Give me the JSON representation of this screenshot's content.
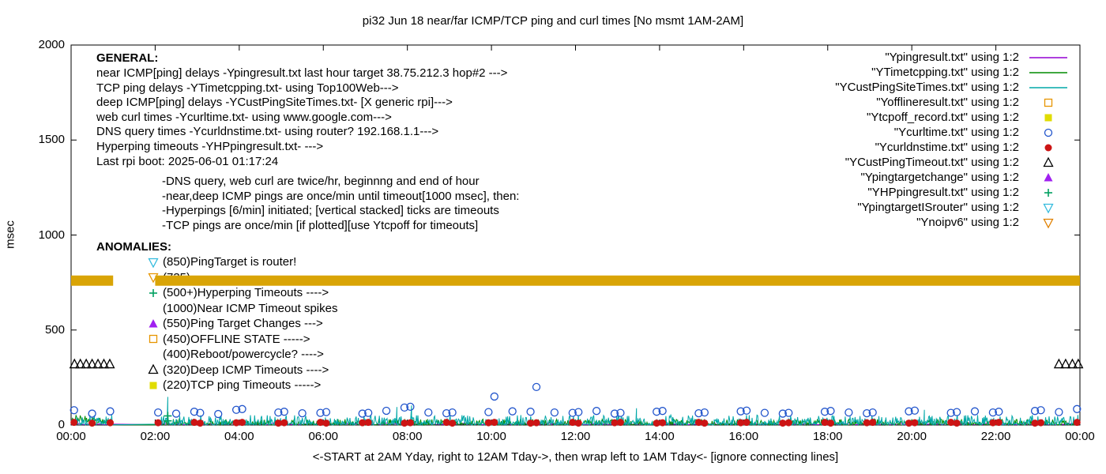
{
  "title": "pi32 Jun 18 near/far ICMP/TCP ping and curl times [No msmt 1AM-2AM]",
  "ylabel": "msec",
  "xlabel_note": "<-START at 2AM Yday, right to 12AM Tday->, then wrap left to 1AM Tday<- [ignore connecting lines]",
  "general": {
    "heading": "GENERAL:",
    "items": [
      {
        "text": "near ICMP[ping] delays -Ypingresult.txt last hour target 38.75.212.3 hop#2 --->",
        "indent": false
      },
      {
        "text": "TCP ping delays -YTimetcpping.txt- using Top100Web--->",
        "indent": false
      },
      {
        "text": "deep ICMP[ping] delays -YCustPingSiteTimes.txt- [X generic rpi]--->",
        "indent": false
      },
      {
        "text": "web curl times -Ycurltime.txt- using www.google.com--->",
        "indent": false
      },
      {
        "text": "DNS query times -Ycurldnstime.txt- using router? 192.168.1.1--->",
        "indent": false
      },
      {
        "text": "Hyperping timeouts -YHPpingresult.txt- --->",
        "indent": false
      },
      {
        "text": "Last rpi boot: 2025-06-01 01:17:24",
        "indent": false
      },
      {
        "text": "-DNS query, web curl are twice/hr, beginnng and end of hour",
        "indent": true
      },
      {
        "text": "-near,deep ICMP pings are once/min until timeout[1000 msec], then:",
        "indent": true
      },
      {
        "text": "-Hyperpings [6/min] initiated; [vertical stacked] ticks are timeouts",
        "indent": true
      },
      {
        "text": "-TCP pings are once/min [if plotted][use Ytcpoff for timeouts]",
        "indent": true
      }
    ]
  },
  "anomalies": {
    "heading": "ANOMALIES:",
    "items": [
      {
        "marker": "triangle-down-open",
        "color": "#33BBDD",
        "text": "(850)PingTarget is router!"
      },
      {
        "marker": "triangle-down-open",
        "color": "#E69500",
        "text": "(735)"
      },
      {
        "marker": "plus",
        "color": "#00A060",
        "text": "(500+)Hyperping Timeouts ---->"
      },
      {
        "marker": null,
        "color": null,
        "text": "(1000)Near ICMP Timeout spikes"
      },
      {
        "marker": "triangle-filled",
        "color": "#A020F0",
        "text": "(550)Ping Target Changes --->"
      },
      {
        "marker": "square-open",
        "color": "#E69500",
        "text": "(450)OFFLINE STATE ----->"
      },
      {
        "marker": null,
        "color": null,
        "text": "(400)Reboot/powercycle? ---->"
      },
      {
        "marker": "triangle-open",
        "color": "#000000",
        "text": "(320)Deep ICMP Timeouts ---->"
      },
      {
        "marker": "square-filled",
        "color": "#E0DC00",
        "text": "(220)TCP ping Timeouts ----->"
      }
    ]
  },
  "legend": [
    {
      "label": "\"Ypingresult.txt\" using 1:2",
      "marker": "line",
      "color": "#9400D3"
    },
    {
      "label": "\"YTimetcpping.txt\" using 1:2",
      "marker": "line",
      "color": "#008C00"
    },
    {
      "label": "\"YCustPingSiteTimes.txt\" using 1:2",
      "marker": "line",
      "color": "#00A8A8"
    },
    {
      "label": "\"Yofflineresult.txt\" using 1:2",
      "marker": "square-open",
      "color": "#E69500"
    },
    {
      "label": "\"Ytcpoff_record.txt\" using 1:2",
      "marker": "square-filled",
      "color": "#E0DC00"
    },
    {
      "label": "\"Ycurltime.txt\" using 1:2",
      "marker": "circle-open",
      "color": "#2255CC"
    },
    {
      "label": "\"Ycurldnstime.txt\" using 1:2",
      "marker": "circle-filled",
      "color": "#CC1414"
    },
    {
      "label": "\"YCustPingTimeout.txt\" using 1:2",
      "marker": "triangle-open",
      "color": "#000000"
    },
    {
      "label": "\"Ypingtargetchange\" using 1:2",
      "marker": "triangle-filled",
      "color": "#A020F0"
    },
    {
      "label": "\"YHPpingresult.txt\" using 1:2",
      "marker": "plus",
      "color": "#00A060"
    },
    {
      "label": "\"YpingtargetISrouter\" using 1:2",
      "marker": "triangle-down-open",
      "color": "#33BBDD"
    },
    {
      "label": "\"Ynoipv6\" using 1:2",
      "marker": "triangle-down-open",
      "color": "#E08000"
    }
  ],
  "chart_data": {
    "type": "line",
    "title": "pi32 Jun 18 near/far ICMP/TCP ping and curl times [No msmt 1AM-2AM]",
    "xlabel": "<-START at 2AM Yday, right to 12AM Tday->, then wrap left to 1AM Tday<- [ignore connecting lines]",
    "ylabel": "msec",
    "xlim": [
      0,
      24
    ],
    "ylim": [
      0,
      2000
    ],
    "grid": false,
    "legend_position": "top-right",
    "no_measurement_gap_hours": [
      1,
      2
    ],
    "xticks": {
      "hours": [
        0,
        2,
        4,
        6,
        8,
        10,
        12,
        14,
        16,
        18,
        20,
        22,
        24
      ],
      "labels": [
        "00:00",
        "02:00",
        "04:00",
        "06:00",
        "08:00",
        "10:00",
        "12:00",
        "14:00",
        "16:00",
        "18:00",
        "20:00",
        "22:00",
        "00:00"
      ]
    },
    "yticks": [
      0,
      500,
      1000,
      1500,
      2000
    ],
    "series": [
      {
        "name": "Ynoipv6",
        "style": "band",
        "color": "#D9A406",
        "y": 760,
        "band_halfwidth_msec": 27,
        "segments": [
          [
            0,
            1
          ],
          [
            2,
            24
          ]
        ]
      },
      {
        "name": "Ypingresult",
        "style": "noise-line",
        "color": "#9400D3",
        "seed": 11,
        "step_hours": 0.05,
        "y_base": 2,
        "y_amp": 10,
        "segments": [
          [
            0,
            1
          ],
          [
            2,
            24
          ]
        ]
      },
      {
        "name": "YTimetcpping",
        "style": "noise-line",
        "color": "#008C00",
        "seed": 23,
        "step_hours": 0.016667,
        "y_base": 1,
        "y_amp": 30,
        "ramp_first_hour": 26,
        "segments": [
          [
            0,
            1
          ],
          [
            2,
            24
          ]
        ]
      },
      {
        "name": "YCustPingSiteTimes",
        "style": "noise-line",
        "color": "#00A8A8",
        "seed": 5,
        "step_hours": 0.016667,
        "y_base": 1,
        "y_amp": 52,
        "segments": [
          [
            0,
            1
          ],
          [
            2,
            24
          ]
        ],
        "spikes": [
          [
            2.3,
            148
          ],
          [
            7.75,
            95
          ],
          [
            8.1,
            103
          ],
          [
            13.45,
            88
          ],
          [
            20.3,
            80
          ]
        ]
      },
      {
        "name": "Ycurltime",
        "style": "scatter",
        "marker": "circle-open",
        "color": "#2255CC",
        "points": [
          [
            0.07,
            78
          ],
          [
            0.5,
            60
          ],
          [
            0.93,
            72
          ],
          [
            2.07,
            66
          ],
          [
            2.5,
            60
          ],
          [
            2.93,
            70
          ],
          [
            3.07,
            64
          ],
          [
            3.5,
            58
          ],
          [
            3.93,
            80
          ],
          [
            4.07,
            84
          ],
          [
            4.93,
            66
          ],
          [
            5.07,
            70
          ],
          [
            5.5,
            62
          ],
          [
            5.93,
            64
          ],
          [
            6.07,
            68
          ],
          [
            6.93,
            60
          ],
          [
            7.07,
            64
          ],
          [
            7.5,
            75
          ],
          [
            7.93,
            92
          ],
          [
            8.07,
            96
          ],
          [
            8.5,
            66
          ],
          [
            8.93,
            62
          ],
          [
            9.07,
            66
          ],
          [
            9.93,
            68
          ],
          [
            10.07,
            150
          ],
          [
            10.5,
            72
          ],
          [
            10.93,
            70
          ],
          [
            11.07,
            200
          ],
          [
            11.5,
            66
          ],
          [
            11.93,
            64
          ],
          [
            12.07,
            68
          ],
          [
            12.5,
            74
          ],
          [
            12.93,
            60
          ],
          [
            13.07,
            64
          ],
          [
            13.93,
            70
          ],
          [
            14.07,
            74
          ],
          [
            14.93,
            62
          ],
          [
            15.07,
            66
          ],
          [
            15.93,
            72
          ],
          [
            16.07,
            76
          ],
          [
            16.5,
            64
          ],
          [
            16.93,
            60
          ],
          [
            17.07,
            64
          ],
          [
            17.93,
            70
          ],
          [
            18.07,
            74
          ],
          [
            18.5,
            66
          ],
          [
            18.93,
            62
          ],
          [
            19.07,
            66
          ],
          [
            19.93,
            72
          ],
          [
            20.07,
            76
          ],
          [
            20.93,
            64
          ],
          [
            21.07,
            68
          ],
          [
            21.5,
            72
          ],
          [
            21.93,
            66
          ],
          [
            22.07,
            70
          ],
          [
            22.93,
            74
          ],
          [
            23.07,
            78
          ],
          [
            23.5,
            68
          ],
          [
            23.93,
            84
          ]
        ]
      },
      {
        "name": "Ycurldnstime",
        "style": "scatter",
        "marker": "circle-filled",
        "color": "#CC1414",
        "points": [
          [
            0.07,
            14
          ],
          [
            0.5,
            10
          ],
          [
            0.93,
            12
          ],
          [
            2.07,
            12
          ],
          [
            2.93,
            14
          ],
          [
            3.07,
            10
          ],
          [
            3.93,
            12
          ],
          [
            4.07,
            14
          ],
          [
            4.93,
            10
          ],
          [
            5.07,
            12
          ],
          [
            5.93,
            14
          ],
          [
            6.07,
            10
          ],
          [
            6.93,
            12
          ],
          [
            7.07,
            14
          ],
          [
            7.93,
            10
          ],
          [
            8.07,
            12
          ],
          [
            8.93,
            14
          ],
          [
            9.07,
            10
          ],
          [
            9.93,
            12
          ],
          [
            10.07,
            14
          ],
          [
            10.93,
            10
          ],
          [
            11.07,
            12
          ],
          [
            11.93,
            14
          ],
          [
            12.07,
            10
          ],
          [
            12.93,
            12
          ],
          [
            13.07,
            14
          ],
          [
            13.93,
            10
          ],
          [
            14.07,
            12
          ],
          [
            14.93,
            14
          ],
          [
            15.07,
            10
          ],
          [
            15.93,
            12
          ],
          [
            16.07,
            14
          ],
          [
            16.93,
            10
          ],
          [
            17.07,
            12
          ],
          [
            17.93,
            14
          ],
          [
            18.07,
            10
          ],
          [
            18.93,
            12
          ],
          [
            19.07,
            14
          ],
          [
            19.93,
            10
          ],
          [
            20.07,
            12
          ],
          [
            20.93,
            14
          ],
          [
            21.07,
            10
          ],
          [
            21.93,
            12
          ],
          [
            22.07,
            14
          ],
          [
            22.93,
            10
          ],
          [
            23.07,
            12
          ],
          [
            23.93,
            14
          ]
        ]
      },
      {
        "name": "YCustPingTimeout",
        "style": "scatter",
        "marker": "triangle-open",
        "color": "#000000",
        "points": [
          [
            0.08,
            320
          ],
          [
            0.22,
            320
          ],
          [
            0.36,
            320
          ],
          [
            0.5,
            320
          ],
          [
            0.64,
            320
          ],
          [
            0.78,
            320
          ],
          [
            0.92,
            320
          ],
          [
            23.5,
            320
          ],
          [
            23.66,
            320
          ],
          [
            23.82,
            320
          ],
          [
            23.96,
            320
          ]
        ]
      },
      {
        "name": "YHPpingresult",
        "style": "scatter",
        "marker": "plus",
        "color": "#00A060",
        "points": [
          [
            2.3,
            22
          ],
          [
            2.3,
            48
          ]
        ]
      }
    ]
  }
}
